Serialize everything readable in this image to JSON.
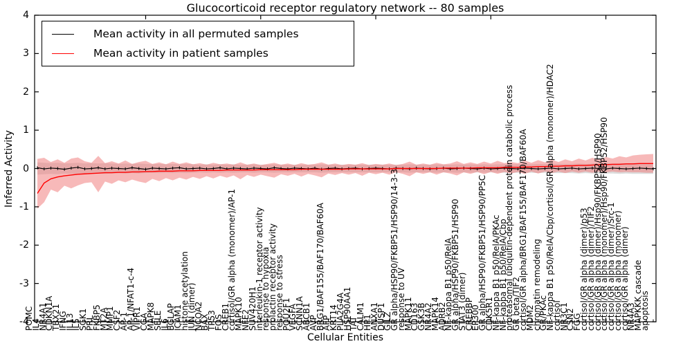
{
  "figure": {
    "title": "Glucocorticoid receptor regulatory network -- 80 samples",
    "xlabel": "Cellular Entities",
    "ylabel": "Inferred Activity"
  },
  "legend": {
    "items": [
      {
        "label": "Mean activity in all permuted samples",
        "color": "#000000"
      },
      {
        "label": "Mean activity in patient samples",
        "color": "#ff0000"
      }
    ],
    "position": "upper left"
  },
  "chart_data": {
    "type": "line",
    "title": "Glucocorticoid receptor regulatory network -- 80 samples",
    "xlabel": "Cellular Entities",
    "ylabel": "Inferred Activity",
    "ylim": [
      -4,
      4
    ],
    "yticks": [
      -4,
      -3,
      -2,
      -1,
      0,
      1,
      2,
      3,
      4
    ],
    "grid": false,
    "legend_position": "upper left",
    "colors": {
      "permuted_line": "#000000",
      "patient_line": "#ff0000",
      "permuted_band": "#b0b0b0",
      "patient_band": "#f08080",
      "axes": "#000000",
      "background": "#ffffff"
    },
    "categories": [
      "POMC",
      "IL4",
      "NR4A1",
      "CDKN1A",
      "TBX21",
      "IFNG",
      "IL13",
      "IL5",
      "SGK1",
      "PRL",
      "FKBP5",
      "MT2A",
      "MMP1",
      "CSF2",
      "AP-1",
      "AP-1/NFAT1-c-4",
      "VIPR1",
      "CGA",
      "MAPK8",
      "SELE",
      "IL6",
      "BGLAP",
      "ICAM1",
      "histone acetylation",
      "JUN (dimer)",
      "NCOA2",
      "BAX",
      "TP53",
      "FOS",
      "CREB1",
      "cortisol/GR alpha (monomer)/AP-1",
      "MAPK10",
      "NFE2",
      "SUV420H1",
      "interleukin-1 receptor activity",
      "response to hypoxia",
      "prolactin receptor activity",
      "response to stress",
      "POU2F1",
      "VEGFA",
      "SCNN1A",
      "ABCB1",
      "AVP",
      "BRG1/BAF155/BAF170/BAF60A",
      "AFP",
      "KRT14",
      "PLA2G4A",
      "HSP90AA1",
      "TAT",
      "CALM1",
      "HP1",
      "ANXA1",
      "DUSP1",
      "GILZ",
      "GR alpha/HSP90/FKBP51/HSP90/14-3-3",
      "response to UV",
      "MAPK11",
      "CD163",
      "GSK3B",
      "NR4A2",
      "MAPK14",
      "ADRB2",
      "NF-kappa B1 p50/RelA",
      "GR alpha/HSP90/FKBP51/HSP90",
      "STAT3 (dimer)",
      "CREBBP",
      "EP300",
      "GR alpha/HSP90/FKBP51/HSP90/PP5C",
      "CDK5R1",
      "NF-kappa B1 p50/RelA/PKAc",
      "NF-kappa B1 p50/RelA/Cbp",
      "proteasomal ubiquitin-dependent protein catabolic process",
      "GR beta/TIF2",
      "cortisol/GR alpha/BRG1/BAF155/BAF170/BAF60A",
      "MDM2",
      "chromatin remodeling",
      "GR/PKAc",
      "NF-kappa B1 p50/RelA/Cbp/cortisol/GR alpha (monomer)/HDAC2",
      "cortisol",
      "NR3C1",
      "CSN2",
      "FGG",
      "cortisol/GR alpha (dimer)/p53",
      "cortisol/GR alpha (dimer)/TIF2",
      "cortisol/GR alpha (dimer)/Hsp90/FKBP52/HSP90",
      "cortisol/GR alpha (monomer)/Hsp90/FKBP52/HSP90",
      "cortisol/GR alpha (dimer)/Src-1",
      "cortisol/GR alpha (monomer)",
      "cortisol/GR alpha (dimer)",
      "NR4A3",
      "MAPKKK cascade",
      "apoptosis"
    ],
    "series": [
      {
        "name": "Mean activity in all permuted samples",
        "color": "#000000",
        "values": [
          0.02,
          -0.01,
          0.01,
          0.0,
          -0.02,
          0.01,
          0.03,
          -0.01,
          0.0,
          0.02,
          -0.01,
          0.01,
          0.0,
          -0.01,
          0.02,
          0.0,
          -0.02,
          0.01,
          0.0,
          -0.01,
          0.01,
          0.02,
          -0.01,
          0.0,
          0.01,
          -0.01,
          0.0,
          0.02,
          -0.01,
          0.01,
          0.0,
          -0.01,
          0.01,
          0.0,
          -0.01,
          0.02,
          0.0,
          -0.01,
          0.01,
          0.0,
          -0.01,
          0.01,
          -0.02,
          0.0,
          0.01,
          -0.01,
          0.0,
          0.01,
          -0.01,
          0.0,
          0.01,
          0.0,
          -0.01,
          0.01,
          0.0,
          -0.01,
          0.01,
          0.0,
          -0.01,
          0.0,
          0.01,
          -0.01,
          0.0,
          0.01,
          0.0,
          -0.01,
          0.01,
          -0.01,
          0.0,
          0.01,
          0.0,
          -0.01,
          0.01,
          0.0,
          -0.01,
          0.0,
          0.01,
          -0.01,
          0.0,
          0.01,
          -0.01,
          0.0,
          0.01,
          0.0,
          -0.01,
          0.01,
          0.0,
          -0.01,
          0.0,
          0.01,
          0.0,
          -0.01
        ]
      },
      {
        "name": "Mean activity in patient samples",
        "color": "#ff0000",
        "values": [
          -0.65,
          -0.38,
          -0.27,
          -0.22,
          -0.19,
          -0.17,
          -0.15,
          -0.14,
          -0.13,
          -0.12,
          -0.11,
          -0.11,
          -0.1,
          -0.1,
          -0.09,
          -0.09,
          -0.08,
          -0.08,
          -0.07,
          -0.07,
          -0.07,
          -0.06,
          -0.06,
          -0.06,
          -0.05,
          -0.05,
          -0.05,
          -0.05,
          -0.04,
          -0.04,
          -0.04,
          -0.04,
          -0.04,
          -0.03,
          -0.03,
          -0.03,
          -0.03,
          -0.03,
          -0.03,
          -0.02,
          -0.02,
          -0.02,
          -0.02,
          -0.02,
          -0.02,
          -0.02,
          -0.01,
          -0.01,
          -0.01,
          -0.01,
          -0.01,
          -0.01,
          -0.01,
          0.0,
          0.0,
          0.0,
          0.0,
          0.0,
          0.0,
          0.0,
          0.01,
          0.01,
          0.01,
          0.01,
          0.01,
          0.02,
          0.02,
          0.02,
          0.02,
          0.03,
          0.03,
          0.03,
          0.04,
          0.04,
          0.05,
          0.05,
          0.06,
          0.06,
          0.07,
          0.07,
          0.08,
          0.08,
          0.09,
          0.1,
          0.1,
          0.11,
          0.11,
          0.12,
          0.12,
          0.13,
          0.13,
          0.13
        ]
      }
    ],
    "bands": [
      {
        "name": "permuted samples range",
        "color": "#b0b0b0",
        "opacity": 0.45,
        "upper": [
          0.16,
          0.15,
          0.14,
          0.15,
          0.13,
          0.14,
          0.15,
          0.13,
          0.14,
          0.13,
          0.14,
          0.13,
          0.12,
          0.13,
          0.12,
          0.13,
          0.12,
          0.11,
          0.12,
          0.11,
          0.12,
          0.11,
          0.12,
          0.11,
          0.1,
          0.11,
          0.1,
          0.11,
          0.1,
          0.11,
          0.1,
          0.1,
          0.11,
          0.1,
          0.1,
          0.11,
          0.1,
          0.1,
          0.1,
          0.1,
          0.1,
          0.1,
          0.11,
          0.1,
          0.1,
          0.1,
          0.1,
          0.1,
          0.1,
          0.1,
          0.1,
          0.1,
          0.1,
          0.1,
          0.1,
          0.11,
          0.1,
          0.1,
          0.1,
          0.11,
          0.1,
          0.1,
          0.11,
          0.1,
          0.11,
          0.1,
          0.11,
          0.1,
          0.11,
          0.11,
          0.11,
          0.11,
          0.12,
          0.11,
          0.12,
          0.11,
          0.12,
          0.12,
          0.12,
          0.12,
          0.13,
          0.12,
          0.13,
          0.13,
          0.13,
          0.13,
          0.14,
          0.13,
          0.14,
          0.14,
          0.14,
          0.14
        ],
        "lower": [
          -0.16,
          -0.15,
          -0.14,
          -0.15,
          -0.13,
          -0.14,
          -0.15,
          -0.13,
          -0.14,
          -0.13,
          -0.14,
          -0.13,
          -0.12,
          -0.13,
          -0.12,
          -0.13,
          -0.12,
          -0.11,
          -0.12,
          -0.11,
          -0.12,
          -0.11,
          -0.12,
          -0.11,
          -0.1,
          -0.11,
          -0.1,
          -0.11,
          -0.1,
          -0.11,
          -0.1,
          -0.1,
          -0.11,
          -0.1,
          -0.1,
          -0.11,
          -0.1,
          -0.1,
          -0.1,
          -0.1,
          -0.1,
          -0.1,
          -0.11,
          -0.1,
          -0.1,
          -0.1,
          -0.1,
          -0.1,
          -0.1,
          -0.1,
          -0.1,
          -0.1,
          -0.1,
          -0.1,
          -0.1,
          -0.11,
          -0.1,
          -0.1,
          -0.1,
          -0.11,
          -0.1,
          -0.1,
          -0.11,
          -0.1,
          -0.11,
          -0.1,
          -0.11,
          -0.1,
          -0.11,
          -0.11,
          -0.11,
          -0.11,
          -0.12,
          -0.11,
          -0.12,
          -0.11,
          -0.12,
          -0.12,
          -0.12,
          -0.12,
          -0.13,
          -0.12,
          -0.13,
          -0.13,
          -0.13,
          -0.13,
          -0.14,
          -0.13,
          -0.14,
          -0.14,
          -0.14,
          -0.14
        ]
      },
      {
        "name": "patient samples range",
        "color": "#f08080",
        "opacity": 0.55,
        "upper": [
          0.25,
          0.28,
          0.17,
          0.24,
          0.15,
          0.26,
          0.29,
          0.19,
          0.15,
          0.33,
          0.14,
          0.19,
          0.13,
          0.21,
          0.12,
          0.17,
          0.2,
          0.12,
          0.16,
          0.11,
          0.18,
          0.12,
          0.16,
          0.11,
          0.14,
          0.1,
          0.15,
          0.11,
          0.13,
          0.1,
          0.16,
          0.1,
          0.13,
          0.09,
          0.12,
          0.15,
          0.1,
          0.13,
          0.09,
          0.14,
          0.1,
          0.12,
          0.16,
          0.1,
          0.13,
          0.09,
          0.12,
          0.1,
          0.14,
          0.09,
          0.12,
          0.1,
          0.13,
          0.09,
          0.12,
          0.18,
          0.1,
          0.13,
          0.1,
          0.15,
          0.11,
          0.13,
          0.19,
          0.12,
          0.16,
          0.12,
          0.18,
          0.13,
          0.2,
          0.14,
          0.17,
          0.14,
          0.21,
          0.15,
          0.22,
          0.16,
          0.23,
          0.17,
          0.24,
          0.19,
          0.26,
          0.21,
          0.28,
          0.23,
          0.3,
          0.26,
          0.32,
          0.29,
          0.34,
          0.36,
          0.37,
          0.38
        ],
        "lower": [
          -1.05,
          -0.88,
          -0.55,
          -0.62,
          -0.45,
          -0.52,
          -0.44,
          -0.38,
          -0.36,
          -0.62,
          -0.34,
          -0.4,
          -0.31,
          -0.36,
          -0.29,
          -0.34,
          -0.38,
          -0.27,
          -0.33,
          -0.25,
          -0.31,
          -0.24,
          -0.29,
          -0.22,
          -0.27,
          -0.2,
          -0.26,
          -0.19,
          -0.24,
          -0.18,
          -0.28,
          -0.17,
          -0.22,
          -0.16,
          -0.2,
          -0.24,
          -0.15,
          -0.19,
          -0.14,
          -0.21,
          -0.14,
          -0.18,
          -0.23,
          -0.13,
          -0.17,
          -0.12,
          -0.16,
          -0.12,
          -0.19,
          -0.11,
          -0.15,
          -0.11,
          -0.16,
          -0.1,
          -0.14,
          -0.2,
          -0.1,
          -0.14,
          -0.1,
          -0.16,
          -0.1,
          -0.13,
          -0.18,
          -0.1,
          -0.14,
          -0.09,
          -0.15,
          -0.09,
          -0.14,
          -0.09,
          -0.13,
          -0.09,
          -0.14,
          -0.08,
          -0.13,
          -0.08,
          -0.12,
          -0.08,
          -0.12,
          -0.08,
          -0.11,
          -0.08,
          -0.11,
          -0.08,
          -0.1,
          -0.08,
          -0.1,
          -0.09,
          -0.1,
          -0.1,
          -0.11,
          -0.11
        ]
      }
    ]
  }
}
